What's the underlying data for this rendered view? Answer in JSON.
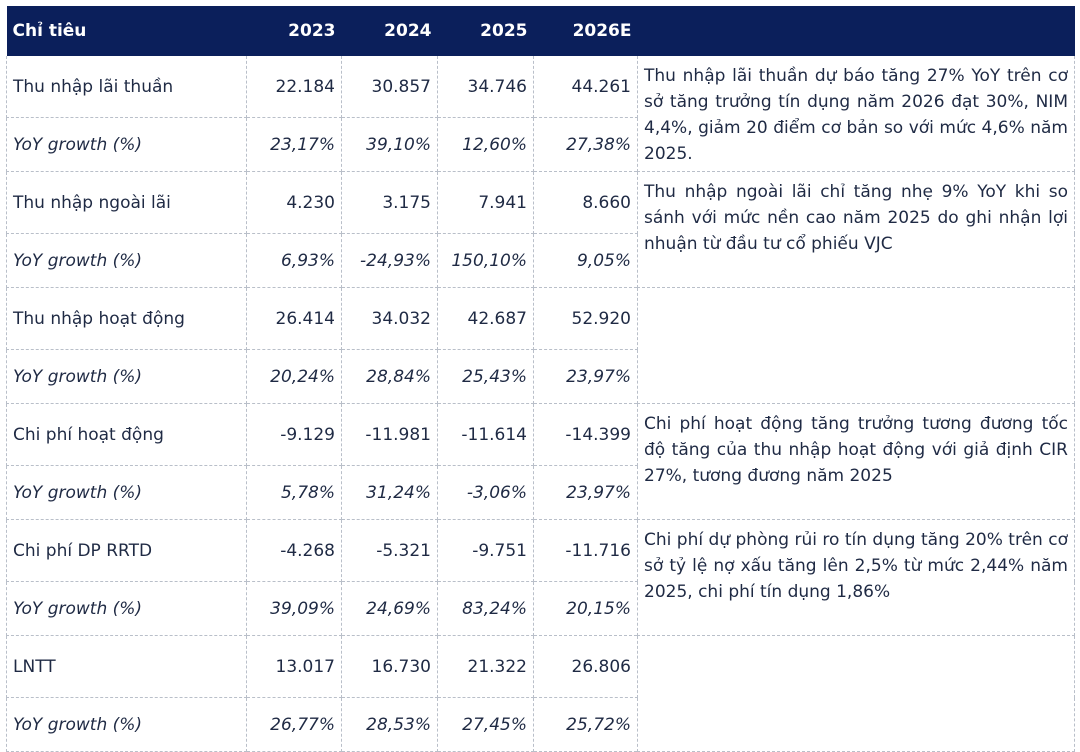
{
  "header": {
    "label": "Chỉ tiêu",
    "years": [
      "2023",
      "2024",
      "2025",
      "2026E"
    ]
  },
  "rows": [
    {
      "label": "Thu nhập lãi thuần",
      "values": [
        "22.184",
        "30.857",
        "34.746",
        "44.261"
      ]
    },
    {
      "label": "YoY growth (%)",
      "values": [
        "23,17%",
        "39,10%",
        "12,60%",
        "27,38%"
      ]
    },
    {
      "label": "Thu nhập ngoài lãi",
      "values": [
        "4.230",
        "3.175",
        "7.941",
        "8.660"
      ]
    },
    {
      "label": "YoY growth (%)",
      "values": [
        "6,93%",
        "-24,93%",
        "150,10%",
        "9,05%"
      ]
    },
    {
      "label": "Thu nhập hoạt động",
      "values": [
        "26.414",
        "34.032",
        "42.687",
        "52.920"
      ]
    },
    {
      "label": "YoY growth (%)",
      "values": [
        "20,24%",
        "28,84%",
        "25,43%",
        "23,97%"
      ]
    },
    {
      "label": "Chi phí hoạt động",
      "values": [
        "-9.129",
        "-11.981",
        "-11.614",
        "-14.399"
      ]
    },
    {
      "label": "YoY growth (%)",
      "values": [
        "5,78%",
        "31,24%",
        "-3,06%",
        "23,97%"
      ]
    },
    {
      "label": "Chi phí DP RRTD",
      "values": [
        "-4.268",
        "-5.321",
        "-9.751",
        "-11.716"
      ]
    },
    {
      "label": "YoY growth (%)",
      "values": [
        "39,09%",
        "24,69%",
        "83,24%",
        "20,15%"
      ]
    },
    {
      "label": "LNTT",
      "values": [
        "13.017",
        "16.730",
        "21.322",
        "26.806"
      ]
    },
    {
      "label": "YoY growth (%)",
      "values": [
        "26,77%",
        "28,53%",
        "27,45%",
        "25,72%"
      ]
    }
  ],
  "comments": [
    "Thu nhập lãi thuần dự báo tăng 27% YoY trên cơ sở tăng trưởng tín dụng năm 2026 đạt 30%, NIM 4,4%, giảm 20 điểm cơ bản so với mức 4,6% năm 2025.",
    "Thu nhập ngoài lãi chỉ tăng nhẹ 9% YoY khi so sánh với mức nền cao năm 2025 do ghi nhận lợi nhuận từ đầu tư cổ phiếu VJC",
    "",
    "Chi phí hoạt động tăng trưởng tương đương tốc độ tăng của thu nhập hoạt động với giả định CIR 27%, tương đương năm 2025",
    "Chi phí dự phòng rủi ro tín dụng tăng 20% trên cơ sở tỷ lệ nợ xấu tăng lên 2,5% từ mức 2,44% năm 2025, chi phí tín dụng 1,86%",
    ""
  ]
}
